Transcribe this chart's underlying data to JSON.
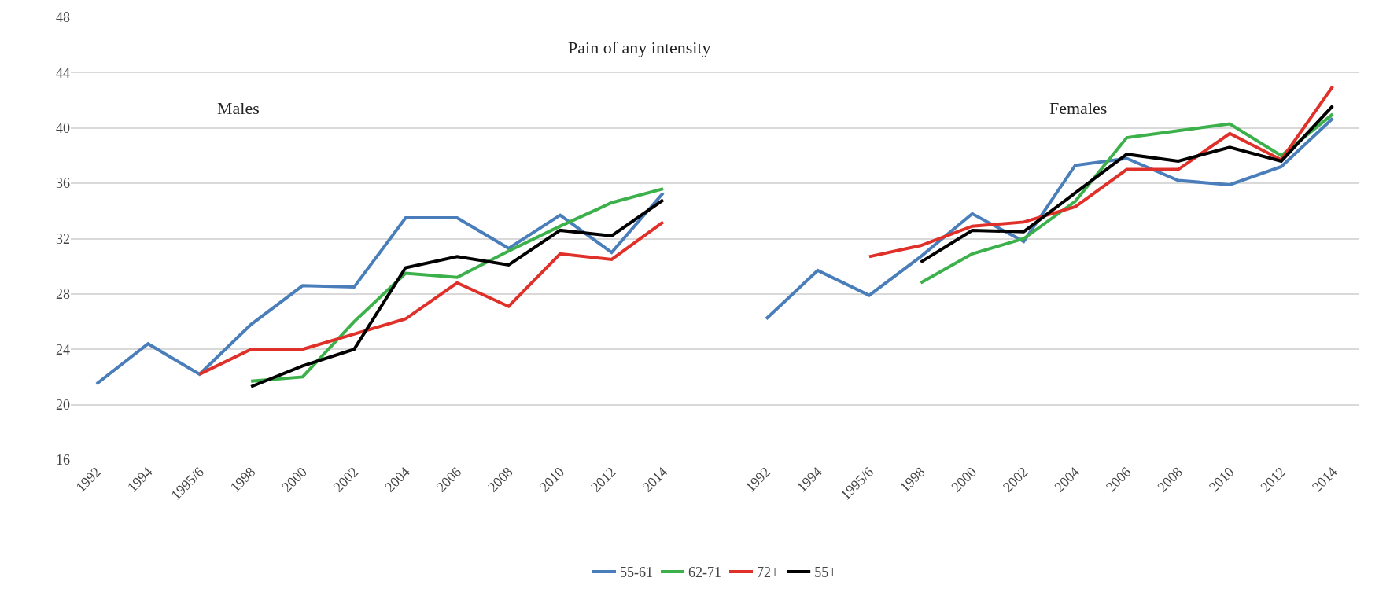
{
  "chart_data": {
    "type": "line",
    "title": "Pain of any intensity",
    "annotations": [
      "Males",
      "Females"
    ],
    "categories": [
      "1992",
      "1994",
      "1995/6",
      "1998",
      "2000",
      "2002",
      "2004",
      "2006",
      "2008",
      "2010",
      "2012",
      "2014",
      null,
      "1992",
      "1994",
      "1995/6",
      "1998",
      "2000",
      "2002",
      "2004",
      "2006",
      "2008",
      "2010",
      "2012",
      "2014"
    ],
    "series": [
      {
        "name": "55-61",
        "color": "#4a7ebb",
        "values": [
          21.5,
          24.4,
          22.2,
          25.8,
          28.6,
          28.5,
          33.5,
          33.5,
          31.3,
          33.7,
          31.0,
          35.3,
          null,
          26.2,
          29.7,
          27.9,
          30.7,
          33.8,
          31.8,
          37.3,
          37.8,
          36.2,
          35.9,
          37.2,
          40.7
        ]
      },
      {
        "name": "62-71",
        "color": "#3cb04a",
        "values": [
          null,
          null,
          null,
          21.7,
          22.0,
          26.0,
          29.5,
          29.2,
          31.1,
          32.9,
          34.6,
          35.6,
          null,
          null,
          null,
          null,
          28.8,
          30.9,
          32.0,
          34.7,
          39.3,
          39.8,
          40.3,
          38.0,
          41.0
        ]
      },
      {
        "name": "72+",
        "color": "#e0302a",
        "values": [
          null,
          null,
          22.2,
          24.0,
          24.0,
          25.1,
          26.2,
          28.8,
          27.1,
          30.9,
          30.5,
          33.2,
          null,
          null,
          null,
          30.7,
          31.5,
          32.9,
          33.2,
          34.3,
          37.0,
          37.0,
          39.6,
          37.7,
          43.0
        ]
      },
      {
        "name": "55+",
        "color": "#000000",
        "values": [
          null,
          null,
          null,
          21.3,
          22.8,
          24.0,
          29.9,
          30.7,
          30.1,
          32.6,
          32.2,
          34.8,
          null,
          null,
          null,
          null,
          30.3,
          32.6,
          32.5,
          35.3,
          38.1,
          37.6,
          38.6,
          37.6,
          41.6
        ]
      }
    ],
    "ylim": [
      16,
      48
    ],
    "yticks": [
      16,
      20,
      24,
      28,
      32,
      36,
      40,
      44,
      48
    ],
    "grid": "y",
    "legend": "bottom",
    "marker": "none",
    "line_style": "solid"
  }
}
